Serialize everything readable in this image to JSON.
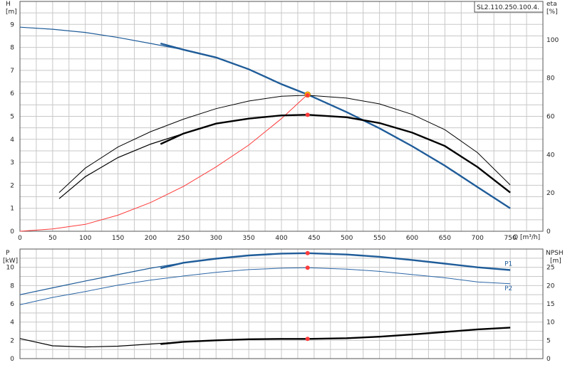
{
  "model_label": "SL2.110.250.100.4.",
  "colors": {
    "blue_dark": "#1f5c99",
    "blue_mid": "#2b66a6",
    "red": "#ff3b3b",
    "op_point": "#ffb300",
    "black": "#000000",
    "grid": "#c8c8c8"
  },
  "chart_data": [
    {
      "type": "line",
      "x": {
        "label": "Q [m³/h]",
        "ticks": [
          "0",
          "50",
          "100",
          "150",
          "200",
          "250",
          "300",
          "350",
          "400",
          "450",
          "500",
          "550",
          "600",
          "650",
          "700",
          "750"
        ],
        "range": [
          0,
          800
        ]
      },
      "left_axis": {
        "label_line1": "H",
        "label_line2": "[m]",
        "ticks": [
          "0",
          "1",
          "2",
          "3",
          "4",
          "5",
          "6",
          "7",
          "8",
          "9"
        ],
        "range": [
          0,
          10
        ]
      },
      "right_axis": {
        "label_line1": "eta",
        "label_line2": "[%]",
        "ticks": [
          "0",
          "20",
          "40",
          "60",
          "80",
          "100"
        ],
        "range": [
          0,
          120
        ]
      },
      "series": [
        {
          "id": "H",
          "axis": "left",
          "color": "#1f5c99",
          "points": [
            [
              0,
              8.88
            ],
            [
              50,
              8.79
            ],
            [
              100,
              8.65
            ],
            [
              150,
              8.43
            ],
            [
              200,
              8.17
            ],
            [
              250,
              7.9
            ],
            [
              300,
              7.56
            ],
            [
              350,
              7.05
            ],
            [
              400,
              6.4
            ],
            [
              440,
              5.95
            ],
            [
              500,
              5.18
            ],
            [
              550,
              4.48
            ],
            [
              600,
              3.7
            ],
            [
              650,
              2.85
            ],
            [
              700,
              1.92
            ],
            [
              750,
              1.0
            ]
          ],
          "highlight_from_x": 215
        },
        {
          "id": "system_curve",
          "axis": "left",
          "color": "#ff3b3b",
          "points": [
            [
              0,
              0
            ],
            [
              50,
              0.1
            ],
            [
              100,
              0.3
            ],
            [
              150,
              0.7
            ],
            [
              200,
              1.25
            ],
            [
              250,
              1.95
            ],
            [
              300,
              2.8
            ],
            [
              350,
              3.75
            ],
            [
              400,
              4.9
            ],
            [
              440,
              5.95
            ]
          ]
        },
        {
          "id": "eta_upper",
          "axis": "right",
          "color": "#000000",
          "points": [
            [
              60,
              20.2
            ],
            [
              100,
              33
            ],
            [
              150,
              44
            ],
            [
              200,
              52
            ],
            [
              250,
              58.5
            ],
            [
              300,
              64
            ],
            [
              350,
              68
            ],
            [
              400,
              70.5
            ],
            [
              440,
              71
            ],
            [
              500,
              69.5
            ],
            [
              550,
              66.5
            ],
            [
              600,
              61
            ],
            [
              650,
              53
            ],
            [
              700,
              41
            ],
            [
              750,
              24.2
            ]
          ]
        },
        {
          "id": "eta_lower",
          "axis": "right",
          "color": "#000000",
          "points": [
            [
              60,
              17
            ],
            [
              100,
              28.5
            ],
            [
              150,
              38.5
            ],
            [
              200,
              45.5
            ],
            [
              250,
              51
            ],
            [
              300,
              56.2
            ],
            [
              350,
              58.8
            ],
            [
              400,
              60.5
            ],
            [
              440,
              60.8
            ],
            [
              500,
              59.5
            ],
            [
              550,
              56.5
            ],
            [
              600,
              51.5
            ],
            [
              650,
              44.5
            ],
            [
              700,
              33.5
            ],
            [
              750,
              20.2
            ]
          ],
          "highlight_from_x": 215
        }
      ],
      "markers": [
        {
          "x": 440,
          "y": 5.95,
          "axis": "left",
          "color": "#ffb300"
        },
        {
          "x": 440,
          "y": 71,
          "axis": "right",
          "color": "#ff3b3b"
        },
        {
          "x": 440,
          "y": 60.8,
          "axis": "right",
          "color": "#ff3b3b"
        }
      ]
    },
    {
      "type": "line",
      "x": {
        "range": [
          0,
          800
        ]
      },
      "left_axis": {
        "label_line1": "P",
        "label_line2": "[kW]",
        "ticks": [
          "0",
          "2",
          "4",
          "6",
          "8",
          "10"
        ],
        "range": [
          0,
          12
        ]
      },
      "right_axis": {
        "label_line1": "NPSH",
        "label_line2": "[m]",
        "ticks": [
          "0",
          "5",
          "10",
          "15",
          "20",
          "25"
        ],
        "range": [
          0,
          30
        ]
      },
      "series": [
        {
          "id": "P1",
          "label": "P1",
          "axis": "left",
          "color": "#1f5c99",
          "points": [
            [
              0,
              7.0
            ],
            [
              50,
              7.75
            ],
            [
              100,
              8.5
            ],
            [
              150,
              9.2
            ],
            [
              200,
              9.9
            ],
            [
              250,
              10.5
            ],
            [
              300,
              10.95
            ],
            [
              350,
              11.3
            ],
            [
              400,
              11.5
            ],
            [
              440,
              11.55
            ],
            [
              500,
              11.4
            ],
            [
              550,
              11.15
            ],
            [
              600,
              10.8
            ],
            [
              650,
              10.4
            ],
            [
              700,
              10.0
            ],
            [
              750,
              9.7
            ]
          ],
          "highlight_from_x": 215
        },
        {
          "id": "P2",
          "label": "P2",
          "axis": "left",
          "color": "#2b66a6",
          "points": [
            [
              0,
              5.9
            ],
            [
              50,
              6.7
            ],
            [
              100,
              7.35
            ],
            [
              150,
              8.05
            ],
            [
              200,
              8.6
            ],
            [
              250,
              9.05
            ],
            [
              300,
              9.45
            ],
            [
              350,
              9.75
            ],
            [
              400,
              9.9
            ],
            [
              440,
              9.95
            ],
            [
              500,
              9.8
            ],
            [
              550,
              9.55
            ],
            [
              600,
              9.2
            ],
            [
              650,
              8.85
            ],
            [
              700,
              8.4
            ],
            [
              750,
              8.2
            ]
          ]
        },
        {
          "id": "NPSH",
          "axis": "right",
          "color": "#000000",
          "points": [
            [
              0,
              5.5
            ],
            [
              50,
              3.5
            ],
            [
              100,
              3.2
            ],
            [
              150,
              3.4
            ],
            [
              200,
              4.0
            ],
            [
              250,
              4.6
            ],
            [
              300,
              5.0
            ],
            [
              350,
              5.3
            ],
            [
              400,
              5.4
            ],
            [
              440,
              5.4
            ],
            [
              500,
              5.6
            ],
            [
              550,
              6.0
            ],
            [
              600,
              6.6
            ],
            [
              650,
              7.3
            ],
            [
              700,
              8.0
            ],
            [
              750,
              8.5
            ]
          ],
          "highlight_from_x": 215
        }
      ],
      "markers": [
        {
          "x": 440,
          "y": 11.55,
          "axis": "left",
          "color": "#ff3b3b"
        },
        {
          "x": 440,
          "y": 9.95,
          "axis": "left",
          "color": "#ff3b3b"
        },
        {
          "x": 440,
          "y": 5.4,
          "axis": "right",
          "color": "#ff3b3b"
        }
      ]
    }
  ]
}
